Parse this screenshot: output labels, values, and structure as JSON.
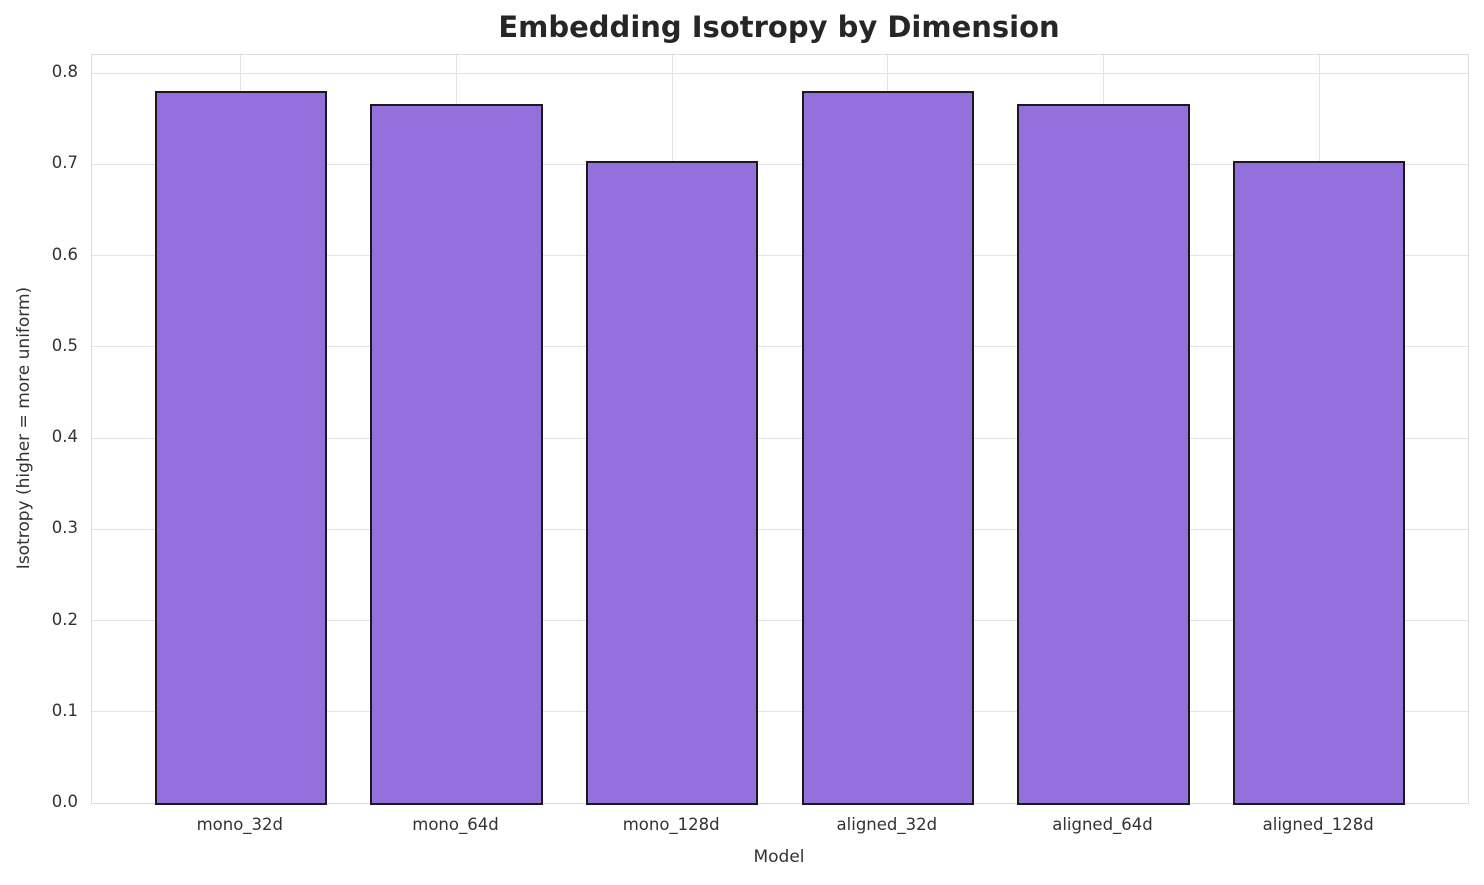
{
  "chart_data": {
    "type": "bar",
    "title": "Embedding Isotropy by Dimension",
    "xlabel": "Model",
    "ylabel": "Isotropy (higher = more uniform)",
    "categories": [
      "mono_32d",
      "mono_64d",
      "mono_128d",
      "aligned_32d",
      "aligned_64d",
      "aligned_128d"
    ],
    "values": [
      0.781,
      0.766,
      0.704,
      0.781,
      0.766,
      0.704
    ],
    "ylim": [
      0,
      0.82
    ],
    "yticks": [
      0.0,
      0.1,
      0.2,
      0.3,
      0.4,
      0.5,
      0.6,
      0.7,
      0.8
    ],
    "ytick_labels": [
      "0.0",
      "0.1",
      "0.2",
      "0.3",
      "0.4",
      "0.5",
      "0.6",
      "0.7",
      "0.8"
    ],
    "grid": true,
    "legend": null,
    "bar_color": "#9370DB",
    "bar_edge_color": "#1a1a1a",
    "grid_color": "#e3e3e5",
    "spine_color": "#dcdcdc",
    "tick_color": "#333333",
    "title_color": "#262626",
    "background_color": "#ffffff"
  }
}
